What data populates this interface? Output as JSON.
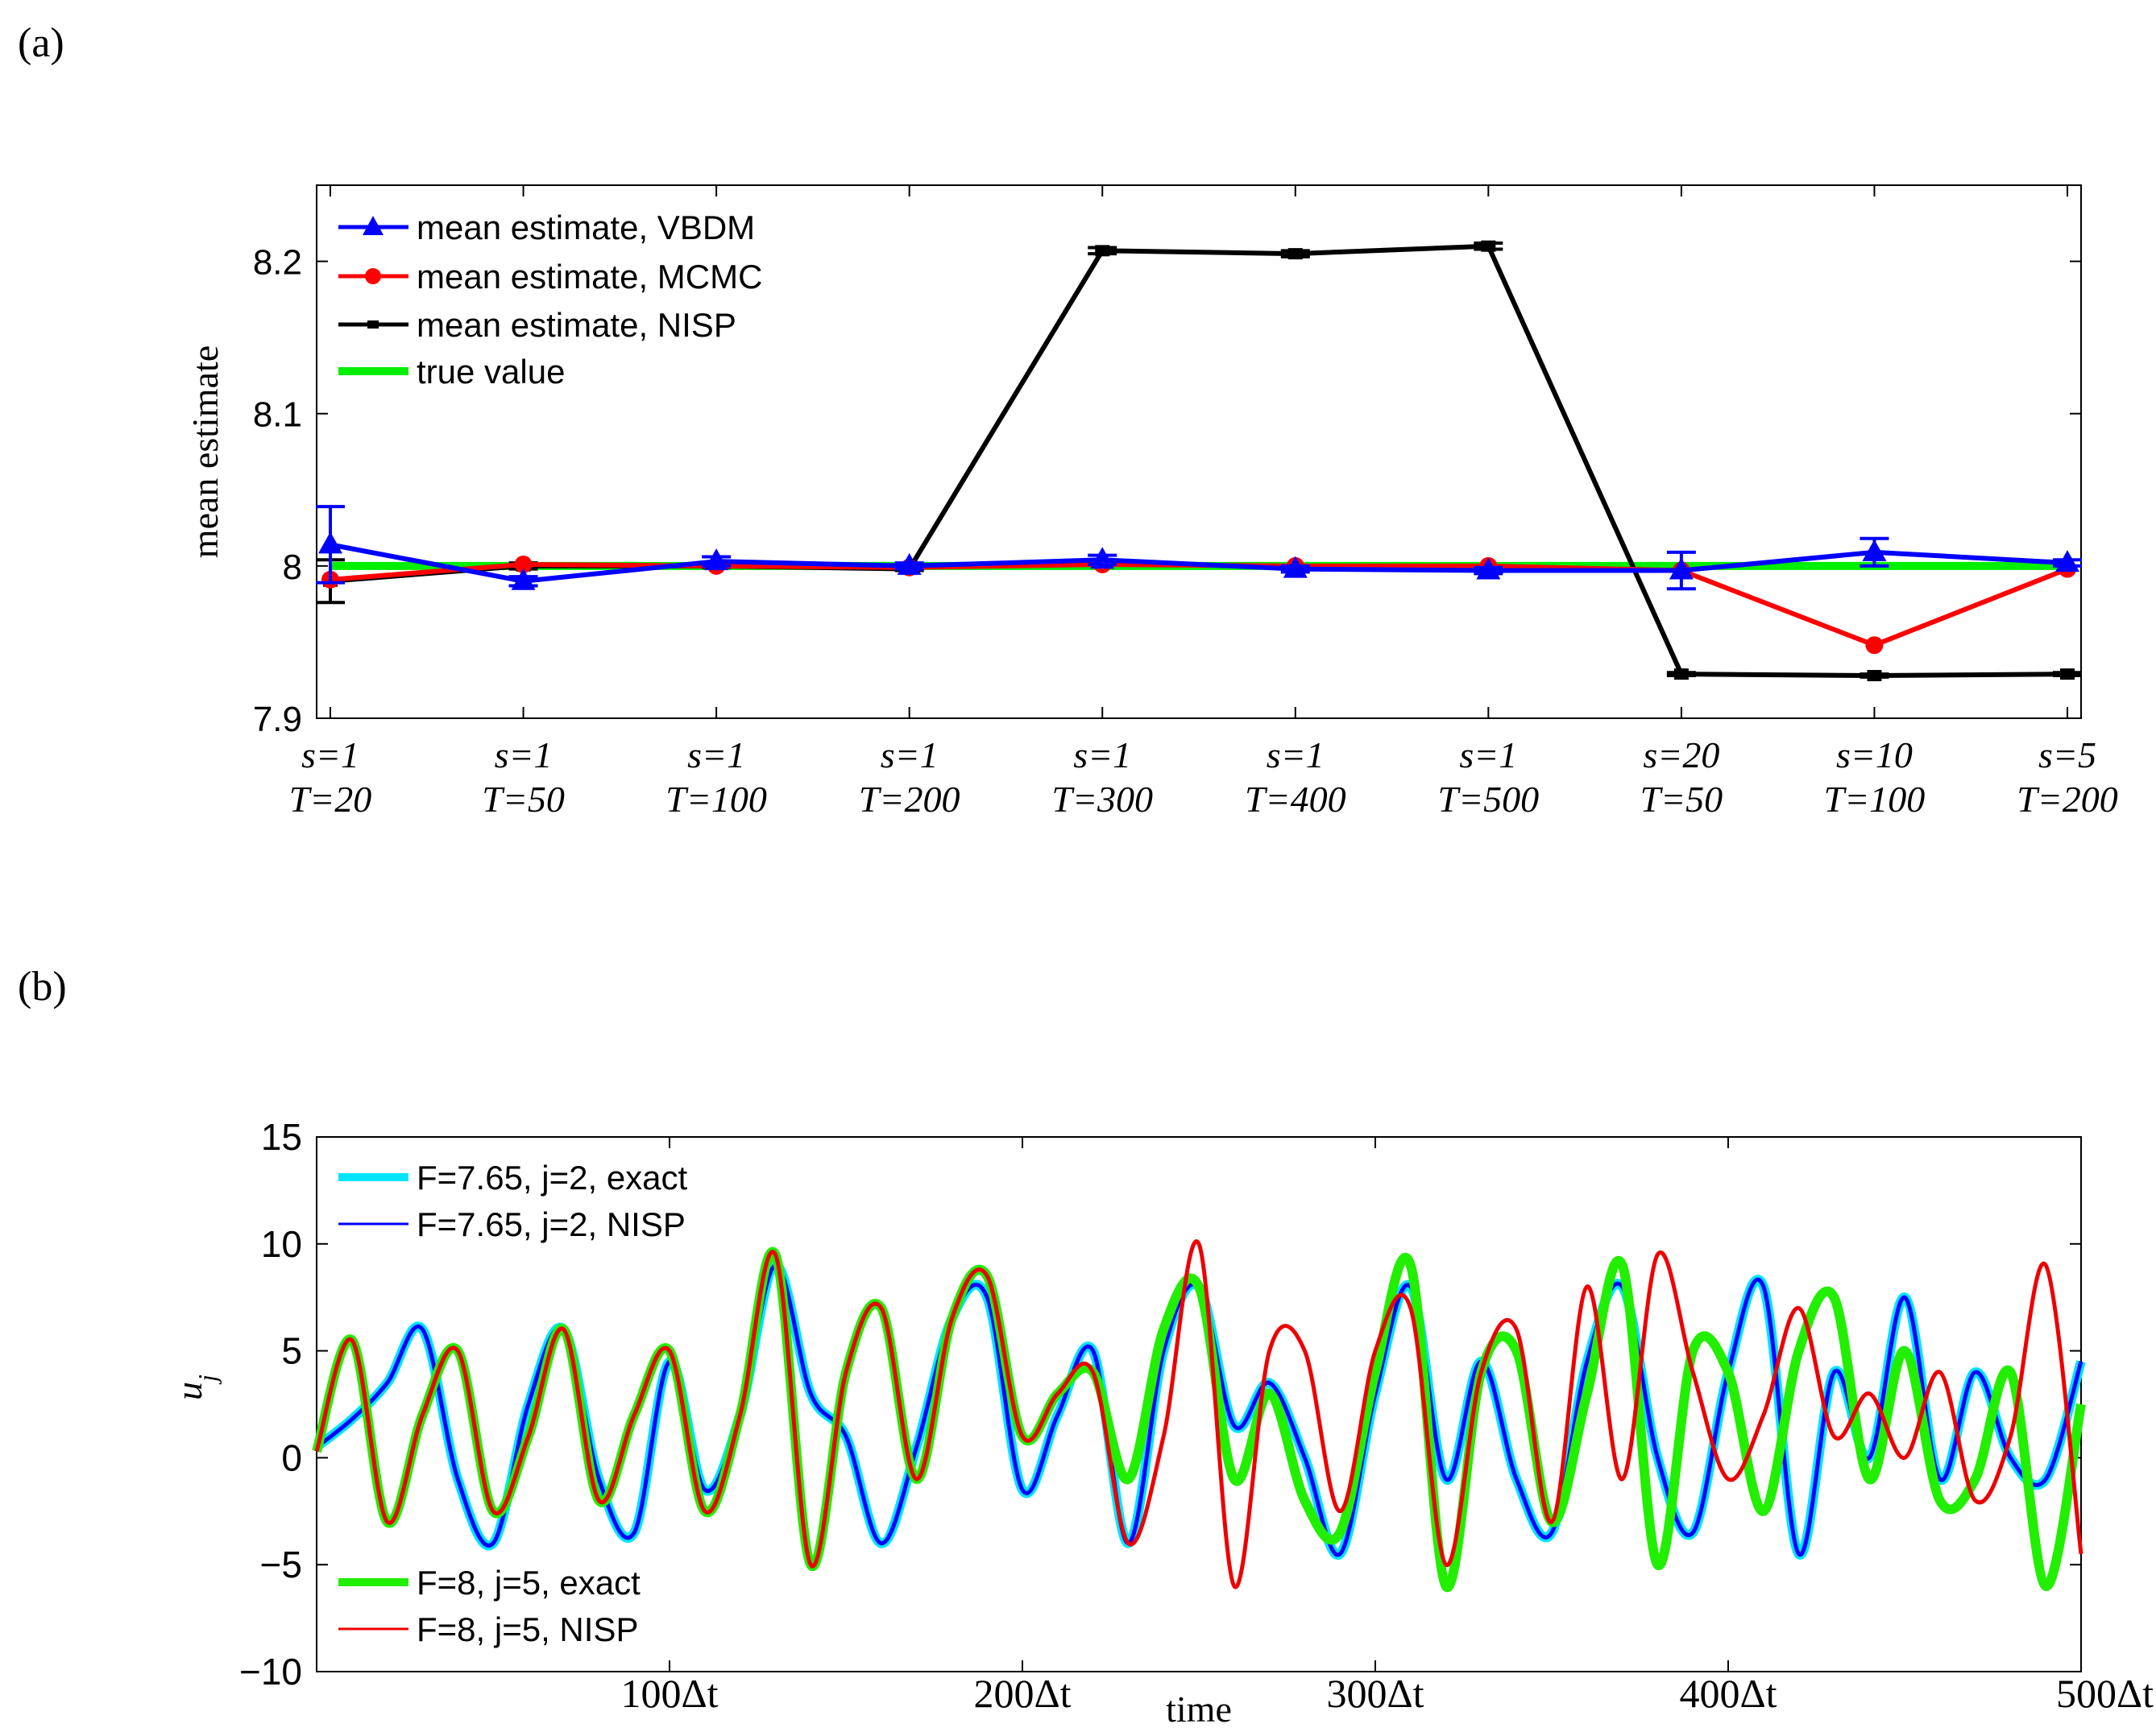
{
  "chart_data": [
    {
      "panel_label": "(a)",
      "type": "line",
      "ylabel": "mean estimate",
      "ylim": [
        7.9,
        8.25
      ],
      "yticks": [
        "7.9",
        "8",
        "8.1",
        "8.2"
      ],
      "categories": [
        {
          "s": "s=1",
          "T": "T=20"
        },
        {
          "s": "s=1",
          "T": "T=50"
        },
        {
          "s": "s=1",
          "T": "T=100"
        },
        {
          "s": "s=1",
          "T": "T=200"
        },
        {
          "s": "s=1",
          "T": "T=300"
        },
        {
          "s": "s=1",
          "T": "T=400"
        },
        {
          "s": "s=1",
          "T": "T=500"
        },
        {
          "s": "s=20",
          "T": "T=50"
        },
        {
          "s": "s=10",
          "T": "T=100"
        },
        {
          "s": "s=5",
          "T": "T=200"
        }
      ],
      "series": [
        {
          "name": "mean estimate, VBDM",
          "color": "#0000ff",
          "marker": "triangle",
          "values": [
            8.014,
            7.99,
            8.003,
            8.0,
            8.004,
            7.998,
            7.997,
            7.997,
            8.009,
            8.002
          ],
          "errors": [
            0.025,
            0.003,
            0.003,
            0.002,
            0.003,
            0.002,
            0.002,
            0.012,
            0.009,
            0.002
          ]
        },
        {
          "name": "mean estimate, MCMC",
          "color": "#ff0000",
          "marker": "circle",
          "values": [
            7.991,
            8.001,
            8.0,
            7.999,
            8.001,
            8.0,
            8.0,
            7.997,
            7.948,
            7.998
          ],
          "errors": [
            0,
            0,
            0,
            0,
            0,
            0,
            0,
            0,
            0,
            0
          ]
        },
        {
          "name": "mean estimate, NISP",
          "color": "#000000",
          "marker": "square",
          "values": [
            7.99,
            8.0,
            8.0,
            7.998,
            8.207,
            8.205,
            8.21,
            7.929,
            7.928,
            7.929
          ],
          "errors": [
            0.014,
            0.002,
            0.001,
            0.001,
            0.002,
            0.002,
            0.002,
            0.001,
            0.001,
            0.001
          ]
        },
        {
          "name": "true value",
          "color": "#00ee00",
          "marker": "none",
          "values": [
            8,
            8,
            8,
            8,
            8,
            8,
            8,
            8,
            8,
            8
          ]
        }
      ]
    },
    {
      "panel_label": "(b)",
      "type": "line",
      "xlabel": "time",
      "ylabel": "u_j",
      "xlim": [
        0,
        500
      ],
      "ylim": [
        -10,
        15
      ],
      "yticks": [
        "15",
        "10",
        "5",
        "0",
        "−5",
        "−10"
      ],
      "xtick_values": [
        100,
        200,
        300,
        400,
        500
      ],
      "xticks": [
        "100Δt",
        "200Δt",
        "300Δt",
        "400Δt",
        "500Δt"
      ],
      "x": [
        0,
        10,
        20,
        30,
        40,
        50,
        60,
        70,
        80,
        90,
        100,
        110,
        120,
        130,
        140,
        150,
        160,
        170,
        180,
        190,
        200,
        210,
        220,
        230,
        240,
        250,
        260,
        270,
        280,
        290,
        300,
        310,
        320,
        330,
        340,
        350,
        360,
        370,
        380,
        390,
        400,
        410,
        420,
        430,
        440,
        450,
        460,
        470,
        480,
        490,
        500
      ],
      "series": [
        {
          "name": "F=7.65, j=2, exact",
          "color": "#00e5ff",
          "values": [
            0.5,
            1.8,
            3.5,
            6,
            -1,
            -4,
            2.5,
            6,
            -1,
            -3.5,
            4.5,
            -1.5,
            2,
            9,
            3,
            1,
            -4,
            0.5,
            6.5,
            7.5,
            -1.5,
            2,
            5,
            -4,
            5,
            8,
            1.5,
            3.5,
            0,
            -4.5,
            3,
            8,
            -1,
            4.5,
            -1,
            -3.5,
            4.5,
            8,
            0,
            -3.5,
            4,
            8,
            -4.5,
            4,
            0,
            7.5,
            -1,
            4,
            0,
            -1,
            4.5
          ]
        },
        {
          "name": "F=7.65, j=2, NISP",
          "color": "#0000ff",
          "values": [
            0.5,
            1.8,
            3.5,
            6,
            -1,
            -4,
            2.5,
            6,
            -1,
            -3.5,
            4.5,
            -1.5,
            2,
            9,
            3,
            1,
            -4,
            0.5,
            6.5,
            7.5,
            -1.5,
            2,
            5,
            -4,
            5,
            8,
            1.5,
            3.5,
            0,
            -4.5,
            3,
            8,
            -1,
            4.5,
            -1,
            -3.5,
            4.5,
            8,
            0,
            -3.5,
            4,
            8,
            -4.5,
            4,
            0,
            7.5,
            -1,
            4,
            0,
            -1,
            4.5
          ]
        },
        {
          "name": "F=8, j=5, exact",
          "color": "#22ee00",
          "values": [
            0.3,
            5.5,
            -3,
            2,
            5,
            -2.5,
            1,
            6,
            -2,
            2,
            5,
            -2.5,
            2,
            9.5,
            -5,
            4,
            7,
            -1,
            6.5,
            8.5,
            1,
            3,
            4,
            -1,
            6,
            8,
            -1,
            3,
            -2,
            -3.5,
            4,
            9,
            -6,
            4,
            5,
            -3,
            3,
            9,
            -5,
            5,
            4,
            -2.5,
            5,
            7.5,
            -1,
            5,
            -2,
            -1,
            4,
            -6,
            2.5
          ]
        },
        {
          "name": "F=8, j=5, NISP",
          "color": "#ee0000",
          "values": [
            0.3,
            5.5,
            -3,
            2,
            5,
            -2.5,
            1,
            6,
            -2,
            2,
            5,
            -2.5,
            2,
            9.5,
            -5,
            4,
            7,
            -1,
            6.5,
            8.5,
            1,
            3,
            4,
            -4,
            1,
            10,
            -6,
            5,
            5,
            -2.5,
            5,
            7,
            -5,
            4,
            6,
            -3,
            8,
            -1,
            9.5,
            4,
            -1,
            2,
            7,
            1,
            3,
            0,
            4,
            -2,
            1,
            9,
            -4.5
          ]
        }
      ]
    }
  ]
}
